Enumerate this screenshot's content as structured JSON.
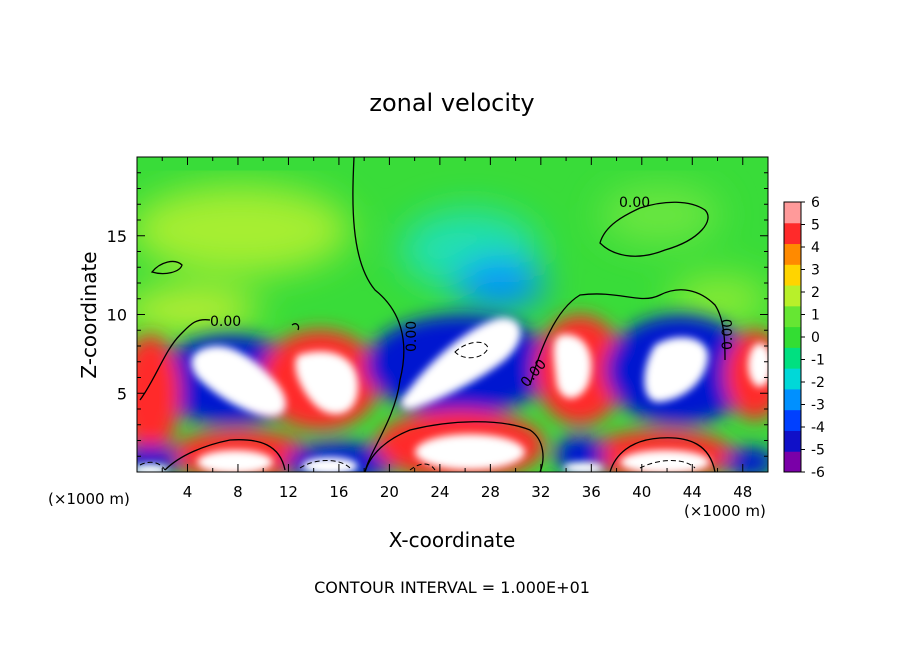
{
  "chart_data": {
    "type": "heatmap",
    "title": "zonal velocity",
    "xlabel": "X-coordinate",
    "ylabel": "Z-coordinate",
    "x_unit_left": "(×1000 m)",
    "x_unit_right": "(×1000 m)",
    "x_ticks": [
      "4",
      "8",
      "12",
      "16",
      "20",
      "24",
      "28",
      "32",
      "36",
      "40",
      "44",
      "48"
    ],
    "y_ticks": [
      "5",
      "10",
      "15"
    ],
    "xlim": [
      0,
      50
    ],
    "ylim": [
      0,
      20
    ],
    "footer": "CONTOUR INTERVAL = 1.000E+01",
    "contour_labels": [
      "0.00",
      "0.00",
      "0.00",
      "0.00",
      "0.00"
    ],
    "colorbar": {
      "ticks": [
        "6",
        "5",
        "4",
        "3",
        "2",
        "1",
        "0",
        "-1",
        "-2",
        "-3",
        "-4",
        "-5",
        "-6"
      ],
      "levels": [
        -6,
        -5,
        -4,
        -3,
        -2,
        -1,
        0,
        1,
        2,
        3,
        4,
        5,
        6
      ],
      "colors": [
        "#7a00a8",
        "#1010c8",
        "#0040ff",
        "#0090ff",
        "#00d8d8",
        "#00e080",
        "#33dd33",
        "#66e633",
        "#b8f02a",
        "#ffd400",
        "#ff8a00",
        "#ff2a2a",
        "#ff9a9a"
      ],
      "over_color": "#ffffff"
    }
  }
}
